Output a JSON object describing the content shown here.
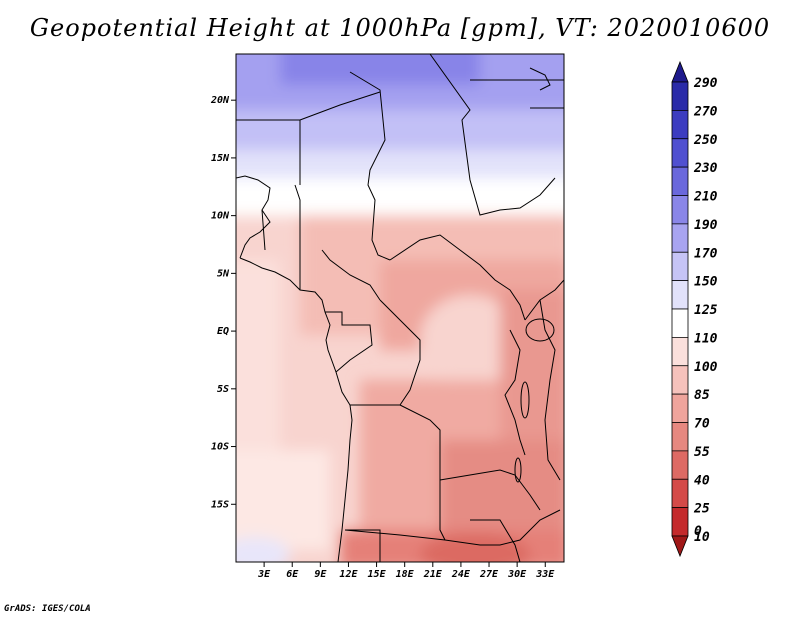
{
  "title": "Geopotential Height at 1000hPa [gpm], VT: 2020010600",
  "credit": "GrADS: IGES/COLA",
  "map": {
    "lon_range": [
      0,
      35
    ],
    "lat_range": [
      -20,
      24
    ],
    "lat_ticks": [
      {
        "value": 20,
        "label": "20N"
      },
      {
        "value": 15,
        "label": "15N"
      },
      {
        "value": 10,
        "label": "10N"
      },
      {
        "value": 5,
        "label": "5N"
      },
      {
        "value": 0,
        "label": "EQ"
      },
      {
        "value": -5,
        "label": "5S"
      },
      {
        "value": -10,
        "label": "10S"
      },
      {
        "value": -15,
        "label": "15S"
      }
    ],
    "lon_ticks": [
      {
        "value": 3,
        "label": "3E"
      },
      {
        "value": 6,
        "label": "6E"
      },
      {
        "value": 9,
        "label": "9E"
      },
      {
        "value": 12,
        "label": "12E"
      },
      {
        "value": 15,
        "label": "15E"
      },
      {
        "value": 18,
        "label": "18E"
      },
      {
        "value": 21,
        "label": "21E"
      },
      {
        "value": 24,
        "label": "24E"
      },
      {
        "value": 27,
        "label": "27E"
      },
      {
        "value": 30,
        "label": "30E"
      },
      {
        "value": 33,
        "label": "33E"
      }
    ]
  },
  "colorbar": {
    "levels": [
      "290",
      "270",
      "250",
      "230",
      "210",
      "190",
      "170",
      "150",
      "125",
      "110",
      "100",
      "85",
      "70",
      "55",
      "40",
      "25",
      "10",
      "0"
    ],
    "colors": [
      "#1e1a8c",
      "#2a2ba8",
      "#3c3cc0",
      "#5050d0",
      "#6a68dc",
      "#8a86e8",
      "#a8a4f0",
      "#c6c4f6",
      "#e2e2fa",
      "#ffffff",
      "#fbe0dc",
      "#f6c2bc",
      "#efa49c",
      "#e68880",
      "#de6a64",
      "#d44a48",
      "#c42a2c",
      "#a01818"
    ]
  }
}
